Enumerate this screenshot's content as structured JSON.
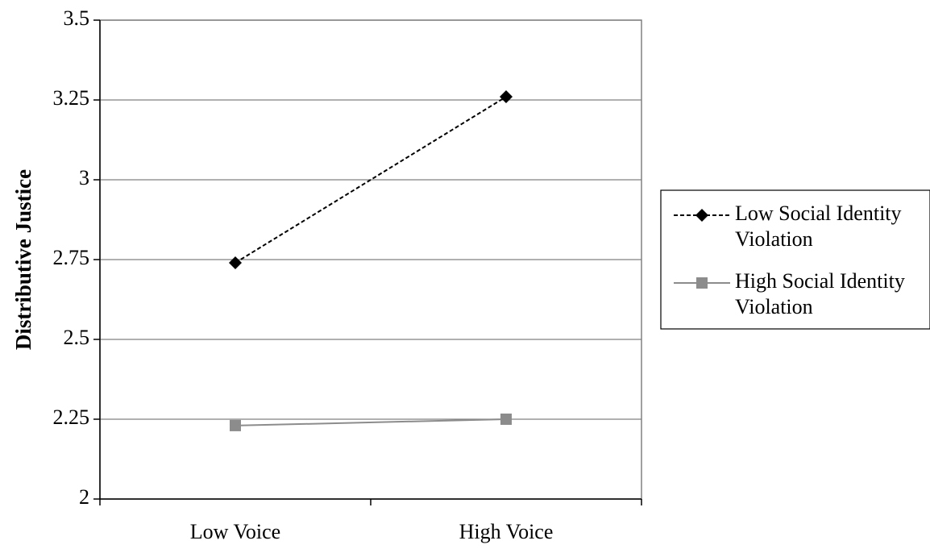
{
  "chart_data": {
    "type": "line",
    "title": "",
    "xlabel": "",
    "ylabel": "Distributive Justice",
    "categories": [
      "Low Voice",
      "High Voice"
    ],
    "ylim": [
      2,
      3.5
    ],
    "yticks": [
      2,
      2.25,
      2.5,
      2.75,
      3,
      3.25,
      3.5
    ],
    "ytick_labels": [
      "2",
      "2.25",
      "2.5",
      "2.75",
      "3",
      "3.25",
      "3.5"
    ],
    "grid": "horizontal",
    "legend_position": "right",
    "series": [
      {
        "name": "Low Social Identity Violation",
        "legend_lines": [
          "Low Social Identity",
          "Violation"
        ],
        "values": [
          2.74,
          3.26
        ],
        "color": "#000000",
        "line_style": "dashed",
        "marker": "diamond"
      },
      {
        "name": "High Social Identity Violation",
        "legend_lines": [
          "High Social Identity",
          "Violation"
        ],
        "values": [
          2.23,
          2.25
        ],
        "color": "#8c8c8c",
        "line_style": "solid",
        "marker": "square"
      }
    ]
  }
}
